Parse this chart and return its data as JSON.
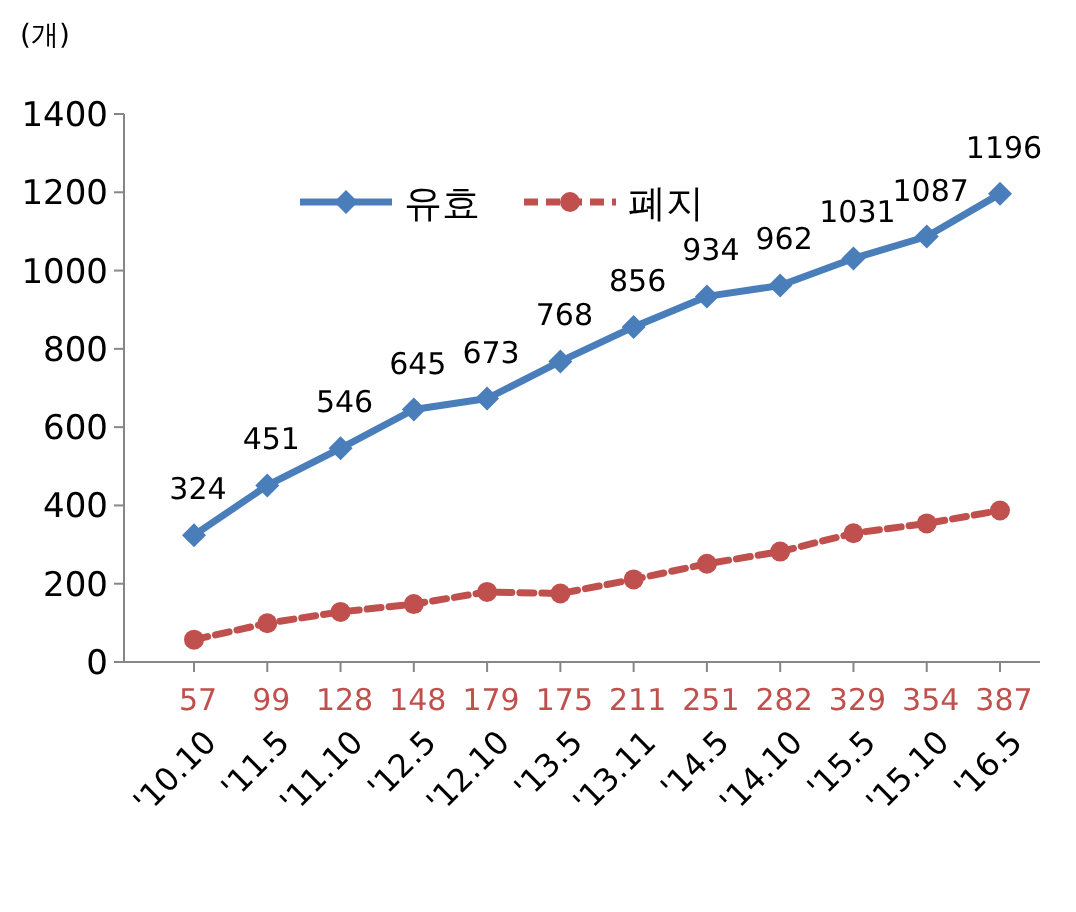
{
  "chart_data": {
    "type": "line",
    "ylabel": "(개)",
    "categories": [
      "'10.10",
      "'11.5",
      "'11.10",
      "'12.5",
      "'12.10",
      "'13.5",
      "'13.11",
      "'14.5",
      "'14.10",
      "'15.5",
      "'15.10",
      "'16.5"
    ],
    "series": [
      {
        "name": "유효",
        "color": "#4a7ebb",
        "marker": "diamond",
        "line_style": "solid",
        "values": [
          324,
          451,
          546,
          645,
          673,
          768,
          856,
          934,
          962,
          1031,
          1087,
          1196
        ]
      },
      {
        "name": "폐지",
        "color": "#c0504d",
        "marker": "circle",
        "line_style": "dashed",
        "values": [
          57,
          99,
          128,
          148,
          179,
          175,
          211,
          251,
          282,
          329,
          354,
          387
        ]
      }
    ],
    "ylim": [
      0,
      1400
    ],
    "yticks": [
      0,
      200,
      400,
      600,
      800,
      1000,
      1200,
      1400
    ],
    "data_labels": true,
    "grid": false,
    "legend": "top"
  }
}
